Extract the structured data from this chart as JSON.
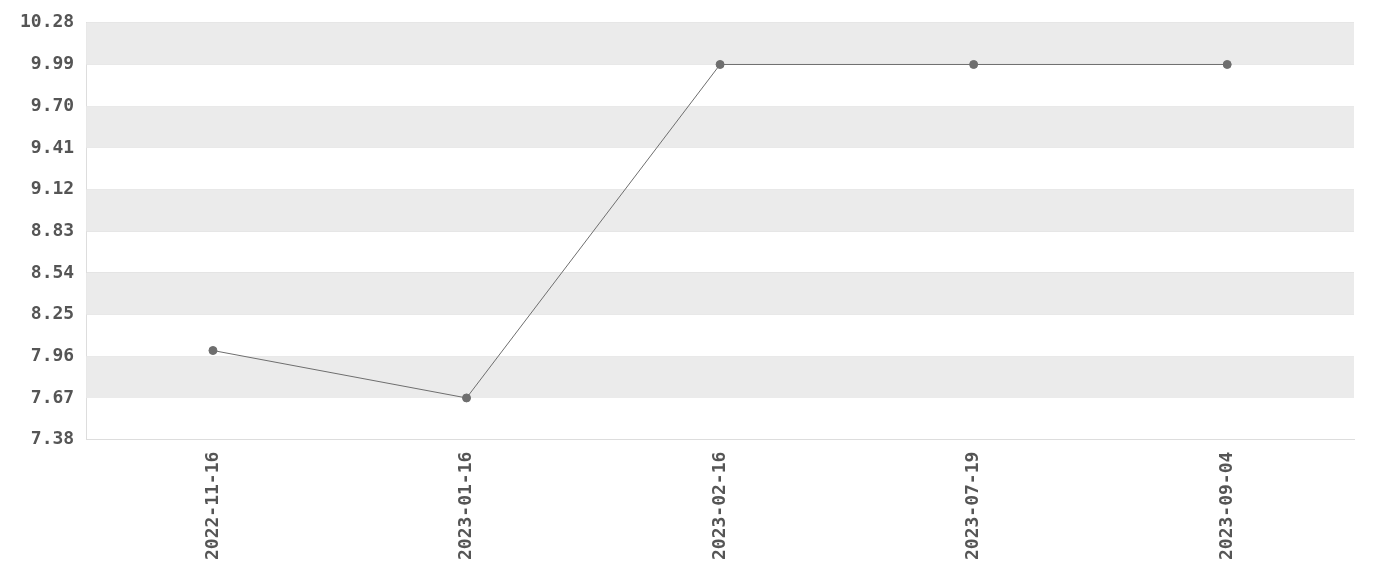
{
  "chart_data": {
    "type": "line",
    "categories": [
      "2022-11-16",
      "2023-01-16",
      "2023-02-16",
      "2023-07-19",
      "2023-09-04"
    ],
    "series": [
      {
        "color": "#6e6e6e",
        "values": [
          8.0,
          7.67,
          9.99,
          9.99,
          9.99
        ]
      }
    ],
    "ylim": [
      7.38,
      10.28
    ],
    "yticks": [
      7.38,
      7.67,
      7.96,
      8.25,
      8.54,
      8.83,
      9.12,
      9.41,
      {
        "value": 9.7,
        "label": "9.70"
      },
      9.99,
      10.28
    ],
    "grid": "y",
    "legend": false,
    "marker": "circle",
    "line_style": "solid"
  }
}
